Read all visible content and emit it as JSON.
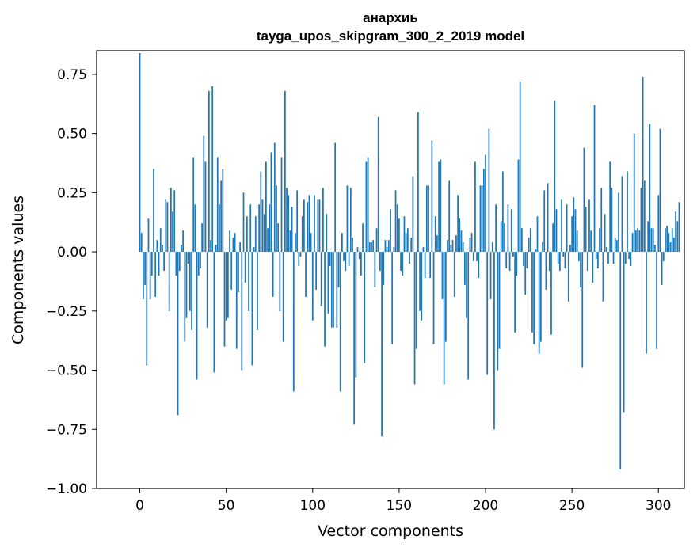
{
  "chart_data": {
    "type": "bar",
    "title": "анархиь",
    "subtitle": "tayga_upos_skipgram_300_2_2019 model",
    "xlabel": "Vector components",
    "ylabel": "Components values",
    "xlim": [
      -25,
      315
    ],
    "ylim": [
      -1.0,
      0.85
    ],
    "xticks": [
      0,
      50,
      100,
      150,
      200,
      250,
      300
    ],
    "xtick_labels": [
      "0",
      "50",
      "100",
      "150",
      "200",
      "250",
      "300"
    ],
    "yticks": [
      0.75,
      0.5,
      0.25,
      0.0,
      -0.25,
      -0.5,
      -0.75,
      -1.0
    ],
    "ytick_labels": [
      "0.75",
      "0.50",
      "0.25",
      "0.00",
      "−0.25",
      "−0.50",
      "−0.75",
      "−1.00"
    ],
    "grid": false,
    "bar_color": "#1f77b4",
    "x_start": 0,
    "values": [
      0.84,
      0.08,
      -0.2,
      -0.14,
      -0.48,
      0.14,
      -0.2,
      -0.1,
      0.35,
      -0.19,
      0.05,
      -0.1,
      0.1,
      0.03,
      -0.08,
      0.22,
      0.21,
      -0.25,
      0.27,
      0.17,
      0.26,
      -0.1,
      -0.69,
      -0.08,
      0.03,
      0.09,
      -0.38,
      -0.28,
      -0.05,
      -0.25,
      -0.33,
      0.4,
      0.2,
      -0.54,
      -0.1,
      -0.07,
      0.12,
      0.49,
      0.38,
      -0.32,
      0.68,
      0.05,
      0.7,
      -0.51,
      0.03,
      0.4,
      0.2,
      0.3,
      0.35,
      -0.4,
      -0.29,
      -0.28,
      0.09,
      -0.16,
      0.06,
      0.08,
      -0.41,
      -0.17,
      0.04,
      -0.5,
      0.25,
      -0.13,
      0.15,
      -0.25,
      0.2,
      -0.48,
      0.02,
      0.15,
      -0.33,
      0.2,
      0.34,
      0.22,
      0.16,
      0.38,
      0.1,
      0.2,
      0.42,
      -0.19,
      0.46,
      0.28,
      0.12,
      -0.25,
      0.4,
      -0.38,
      0.68,
      0.27,
      0.24,
      0.09,
      0.19,
      -0.59,
      0.08,
      0.26,
      -0.06,
      -0.02,
      0.15,
      0.22,
      -0.19,
      0.21,
      0.24,
      0.08,
      -0.29,
      0.24,
      -0.16,
      0.22,
      0.22,
      -0.23,
      0.27,
      -0.4,
      0.16,
      -0.26,
      -0.06,
      -0.32,
      -0.32,
      0.46,
      -0.32,
      -0.15,
      -0.59,
      0.08,
      -0.04,
      -0.08,
      0.28,
      -0.06,
      0.27,
      0.06,
      -0.73,
      -0.53,
      0.02,
      -0.03,
      -0.1,
      0.12,
      -0.47,
      0.38,
      0.4,
      0.04,
      0.04,
      0.05,
      -0.15,
      0.1,
      0.57,
      -0.08,
      -0.78,
      -0.14,
      0.05,
      0.02,
      0.05,
      0.18,
      -0.39,
      0.02,
      0.26,
      0.2,
      0.14,
      -0.08,
      -0.1,
      0.15,
      0.08,
      0.1,
      -0.05,
      0.06,
      0.32,
      -0.56,
      -0.41,
      0.59,
      -0.25,
      -0.29,
      0.02,
      -0.11,
      0.28,
      0.28,
      -0.11,
      0.47,
      -0.39,
      0.15,
      0.07,
      0.38,
      0.39,
      -0.2,
      -0.56,
      -0.38,
      0.05,
      0.3,
      0.03,
      0.05,
      -0.19,
      0.07,
      0.24,
      0.14,
      0.09,
      0.04,
      -0.14,
      -0.28,
      -0.54,
      0.06,
      0.08,
      -0.04,
      0.38,
      -0.04,
      -0.11,
      0.28,
      0.28,
      0.35,
      0.41,
      -0.52,
      0.52,
      -0.2,
      0.04,
      -0.75,
      0.2,
      -0.5,
      -0.41,
      0.13,
      0.34,
      0.12,
      -0.07,
      0.2,
      -0.08,
      0.18,
      -0.02,
      -0.34,
      -0.1,
      0.39,
      0.72,
      0.1,
      -0.06,
      -0.18,
      -0.07,
      0.06,
      0.1,
      -0.34,
      -0.39,
      0.01,
      0.15,
      -0.43,
      -0.38,
      0.04,
      0.26,
      -0.16,
      0.29,
      -0.08,
      -0.35,
      0.12,
      0.64,
      0.18,
      -0.05,
      -0.08,
      0.22,
      -0.02,
      -0.07,
      0.2,
      -0.21,
      0.03,
      0.15,
      0.23,
      0.18,
      0.09,
      -0.04,
      -0.15,
      -0.49,
      0.44,
      0.19,
      -0.08,
      0.22,
      0.09,
      -0.13,
      0.62,
      -0.03,
      -0.07,
      0.1,
      0.27,
      -0.21,
      0.16,
      0.02,
      -0.05,
      0.38,
      0.27,
      -0.05,
      0.06,
      0.05,
      0.25,
      -0.92,
      0.32,
      -0.68,
      -0.05,
      0.34,
      -0.03,
      -0.06,
      0.08,
      0.5,
      0.09,
      0.1,
      0.09,
      0.27,
      0.74,
      0.3,
      -0.43,
      0.13,
      0.54,
      0.1,
      0.1,
      0.03,
      -0.41,
      0.24,
      0.52,
      -0.14,
      -0.04,
      0.1,
      0.11,
      0.08,
      0.04,
      0.1,
      0.06,
      0.17,
      0.13,
      0.21
    ]
  }
}
